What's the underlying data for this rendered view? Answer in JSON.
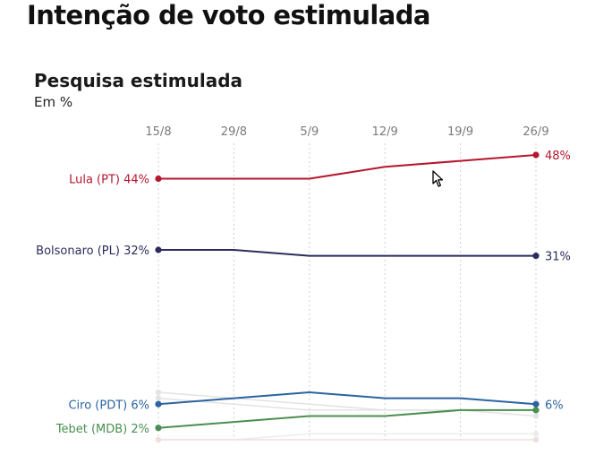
{
  "page": {
    "title": "Intenção de voto estimulada"
  },
  "chart_data": {
    "type": "line",
    "title": "Pesquisa estimulada",
    "subtitle": "Em %",
    "categories": [
      "15/8",
      "29/8",
      "5/9",
      "12/9",
      "19/9",
      "26/9"
    ],
    "ylim": [
      0,
      50
    ],
    "grid": "vertical dotted",
    "series": [
      {
        "name": "Lula (PT)",
        "color": "#b5172e",
        "values": [
          44,
          44,
          44,
          46,
          47,
          48
        ],
        "start_label": "Lula (PT) 44%",
        "end_label": "48%"
      },
      {
        "name": "Bolsonaro (PL)",
        "color": "#2c2c5e",
        "values": [
          32,
          32,
          31,
          31,
          31,
          31
        ],
        "start_label": "Bolsonaro (PL) 32%",
        "end_label": "31%"
      },
      {
        "name": "Ciro (PDT)",
        "color": "#2b64a0",
        "values": [
          6,
          7,
          8,
          7,
          7,
          6
        ],
        "start_label": "Ciro (PDT) 6%",
        "end_label": "6%"
      },
      {
        "name": "Tebet (MDB)",
        "color": "#4a8f4f",
        "values": [
          2,
          3,
          4,
          4,
          5,
          5
        ],
        "start_label": "Tebet (MDB) 2%",
        "end_label": ""
      }
    ],
    "background_series": [
      {
        "color": "#e3e3e3",
        "values": [
          8,
          7,
          6,
          5,
          5,
          5
        ]
      },
      {
        "color": "#e3e3e3",
        "values": [
          7,
          6,
          5,
          5,
          5,
          4
        ]
      },
      {
        "color": "#ececec",
        "values": [
          0,
          0,
          1,
          1,
          1,
          1
        ]
      },
      {
        "color": "#f0dddd",
        "values": [
          0,
          0,
          0,
          0,
          0,
          0
        ]
      }
    ]
  }
}
